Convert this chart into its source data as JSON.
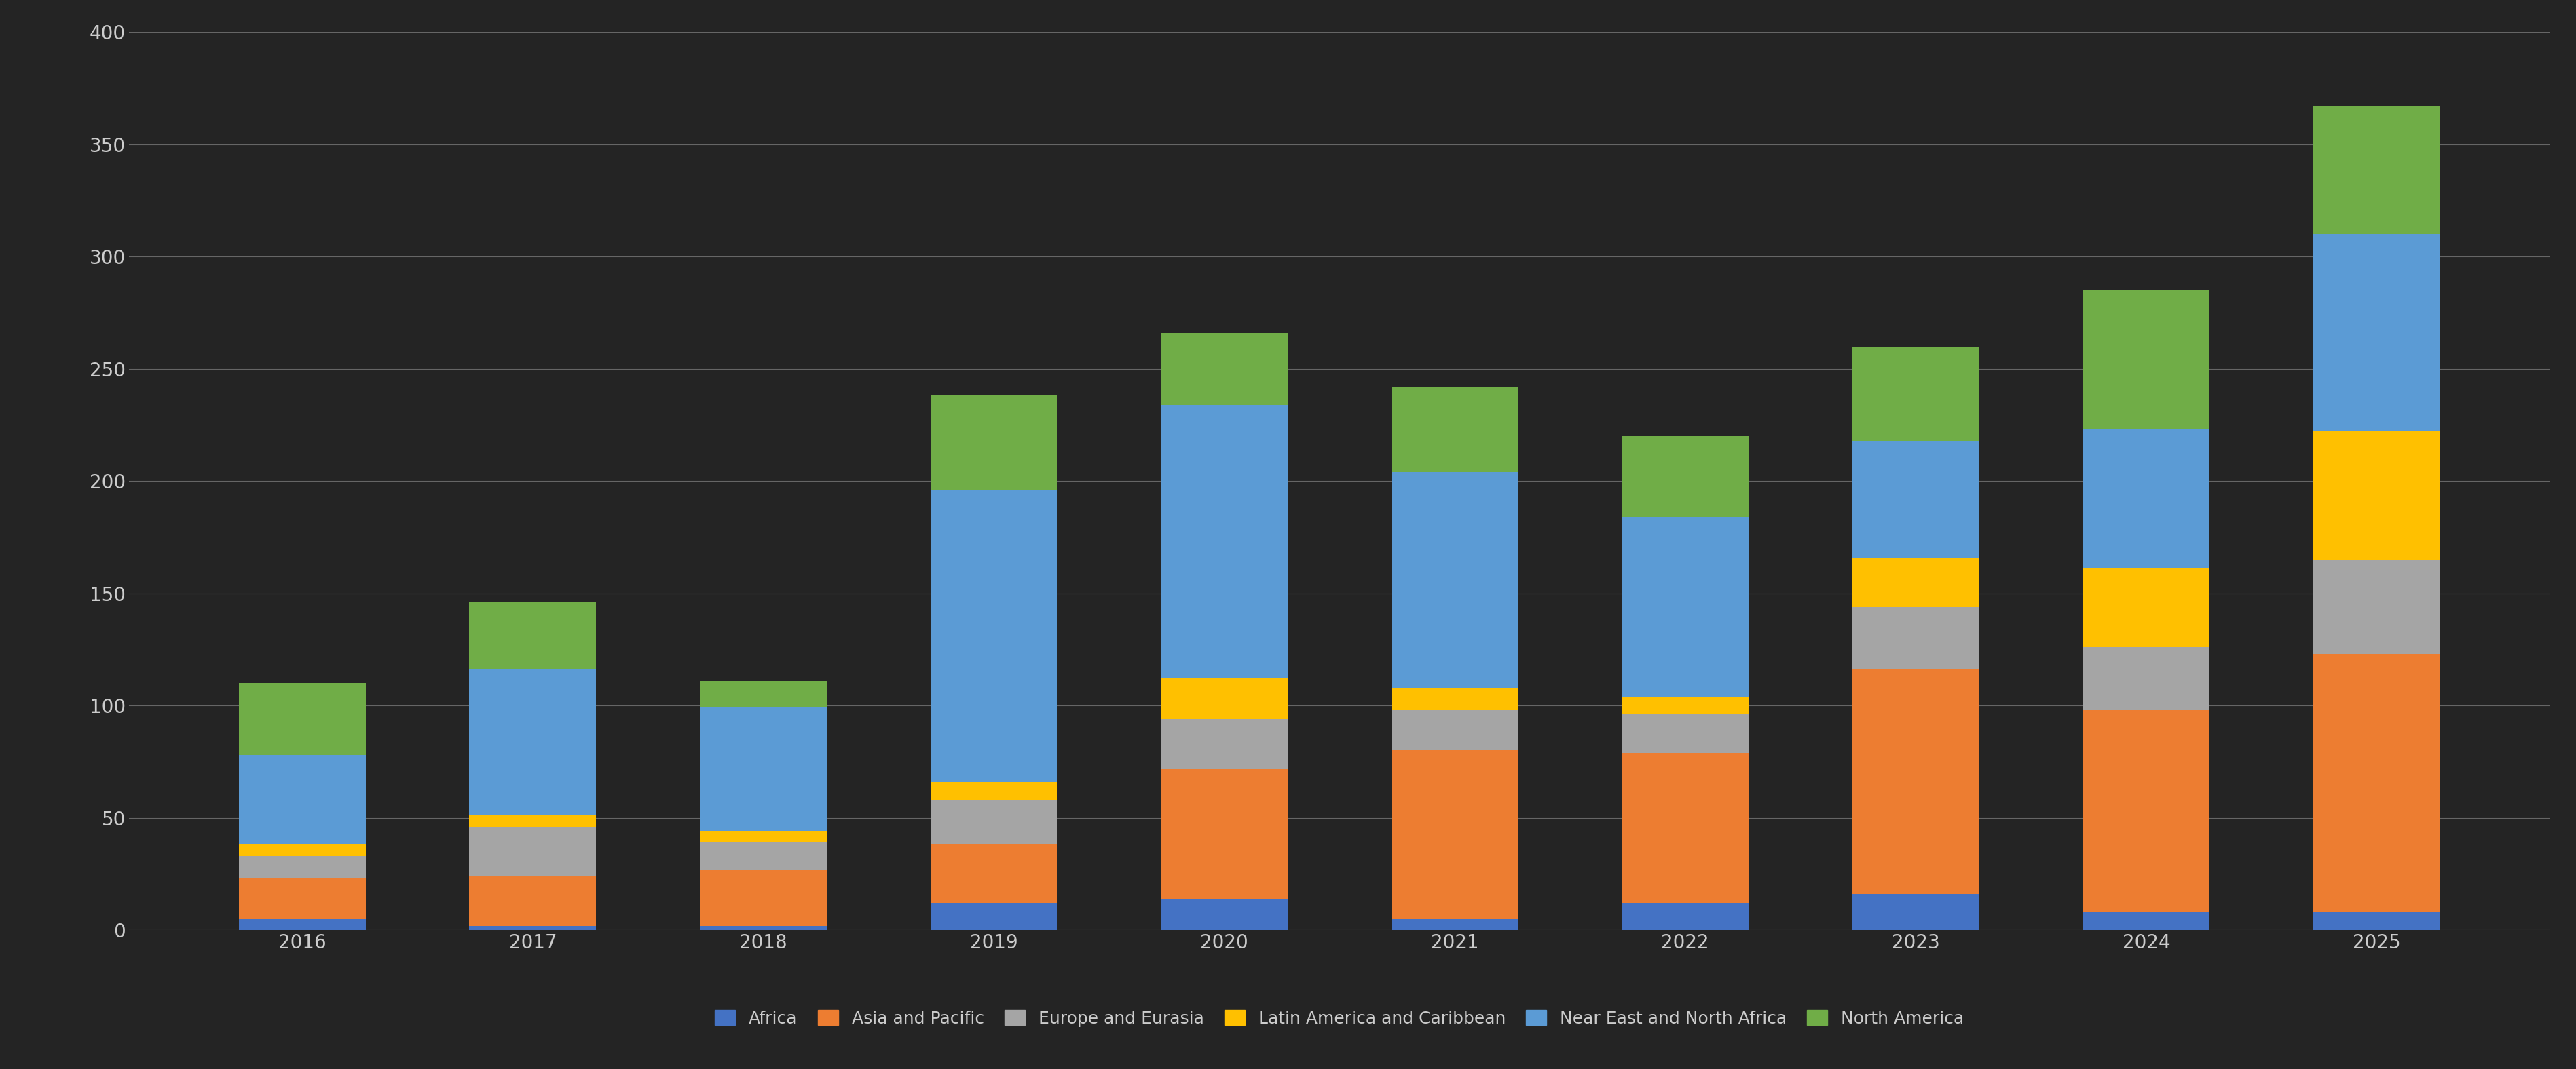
{
  "years": [
    2016,
    2017,
    2018,
    2019,
    2020,
    2021,
    2022,
    2023,
    2024,
    2025
  ],
  "regions": [
    "Africa",
    "Asia and Pacific",
    "Europe and Eurasia",
    "Latin America and Caribbean",
    "Near East and North Africa",
    "North America"
  ],
  "colors": [
    "#4472C4",
    "#ED7D31",
    "#A5A5A5",
    "#FFC000",
    "#5B9BD5",
    "#70AD47"
  ],
  "data": {
    "Africa": [
      5,
      2,
      2,
      12,
      14,
      5,
      12,
      16,
      8,
      8
    ],
    "Asia and Pacific": [
      18,
      22,
      25,
      26,
      58,
      75,
      67,
      100,
      90,
      115
    ],
    "Europe and Eurasia": [
      10,
      22,
      12,
      20,
      22,
      18,
      17,
      28,
      28,
      42
    ],
    "Latin America and Caribbean": [
      5,
      5,
      5,
      8,
      18,
      10,
      8,
      22,
      35,
      57
    ],
    "Near East and North Africa": [
      40,
      65,
      55,
      130,
      122,
      96,
      80,
      52,
      62,
      88
    ],
    "North America": [
      32,
      30,
      12,
      42,
      32,
      38,
      36,
      42,
      62,
      57
    ]
  },
  "ylim": [
    0,
    400
  ],
  "yticks": [
    0,
    50,
    100,
    150,
    200,
    250,
    300,
    350,
    400
  ],
  "background_color": "#242424",
  "plot_bg_color": "#242424",
  "text_color": "#CCCCCC",
  "grid_color": "#666666",
  "legend_fontsize": 18,
  "tick_fontsize": 20,
  "bar_width": 0.55
}
